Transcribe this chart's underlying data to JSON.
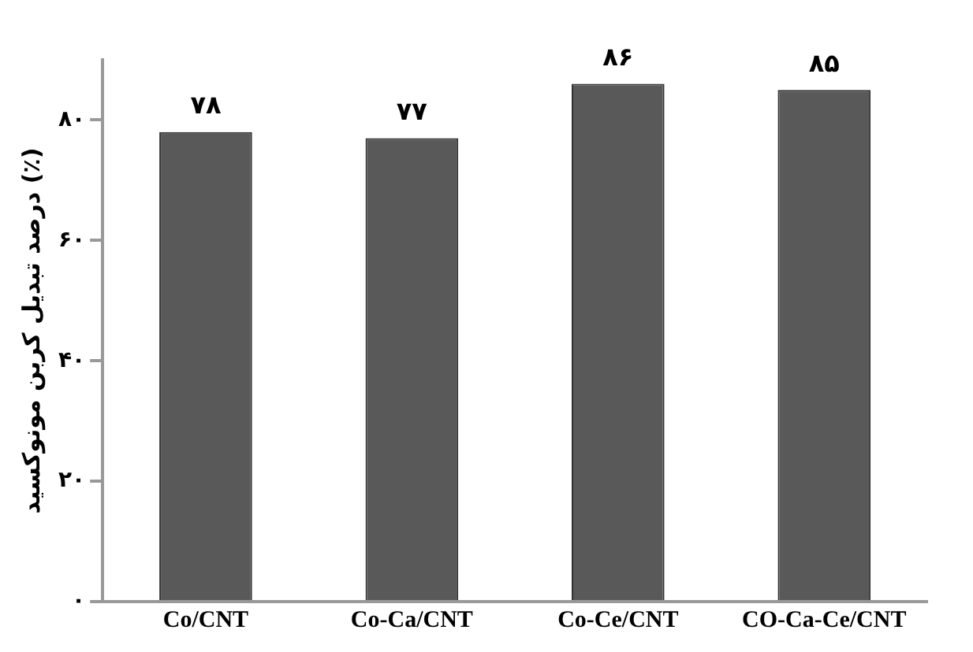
{
  "chart_data": {
    "type": "bar",
    "ylabel": "درصد تبدیل کربن مونوکسید (٪)",
    "categories": [
      "Co/CNT",
      "Co-Ca/CNT",
      "Co-Ce/CNT",
      "CO-Ca-Ce/CNT"
    ],
    "values": [
      78,
      77,
      86,
      85
    ],
    "value_labels": [
      "۷۸",
      "۷۷",
      "۸۶",
      "۸۵"
    ],
    "color": "#595959",
    "ylim": [
      0,
      90
    ],
    "yticks": [
      {
        "value": 0,
        "label": "۰"
      },
      {
        "value": 20,
        "label": "۲۰"
      },
      {
        "value": 40,
        "label": "۴۰"
      },
      {
        "value": 60,
        "label": "۶۰"
      },
      {
        "value": 80,
        "label": "۸۰"
      }
    ],
    "grid": false
  }
}
